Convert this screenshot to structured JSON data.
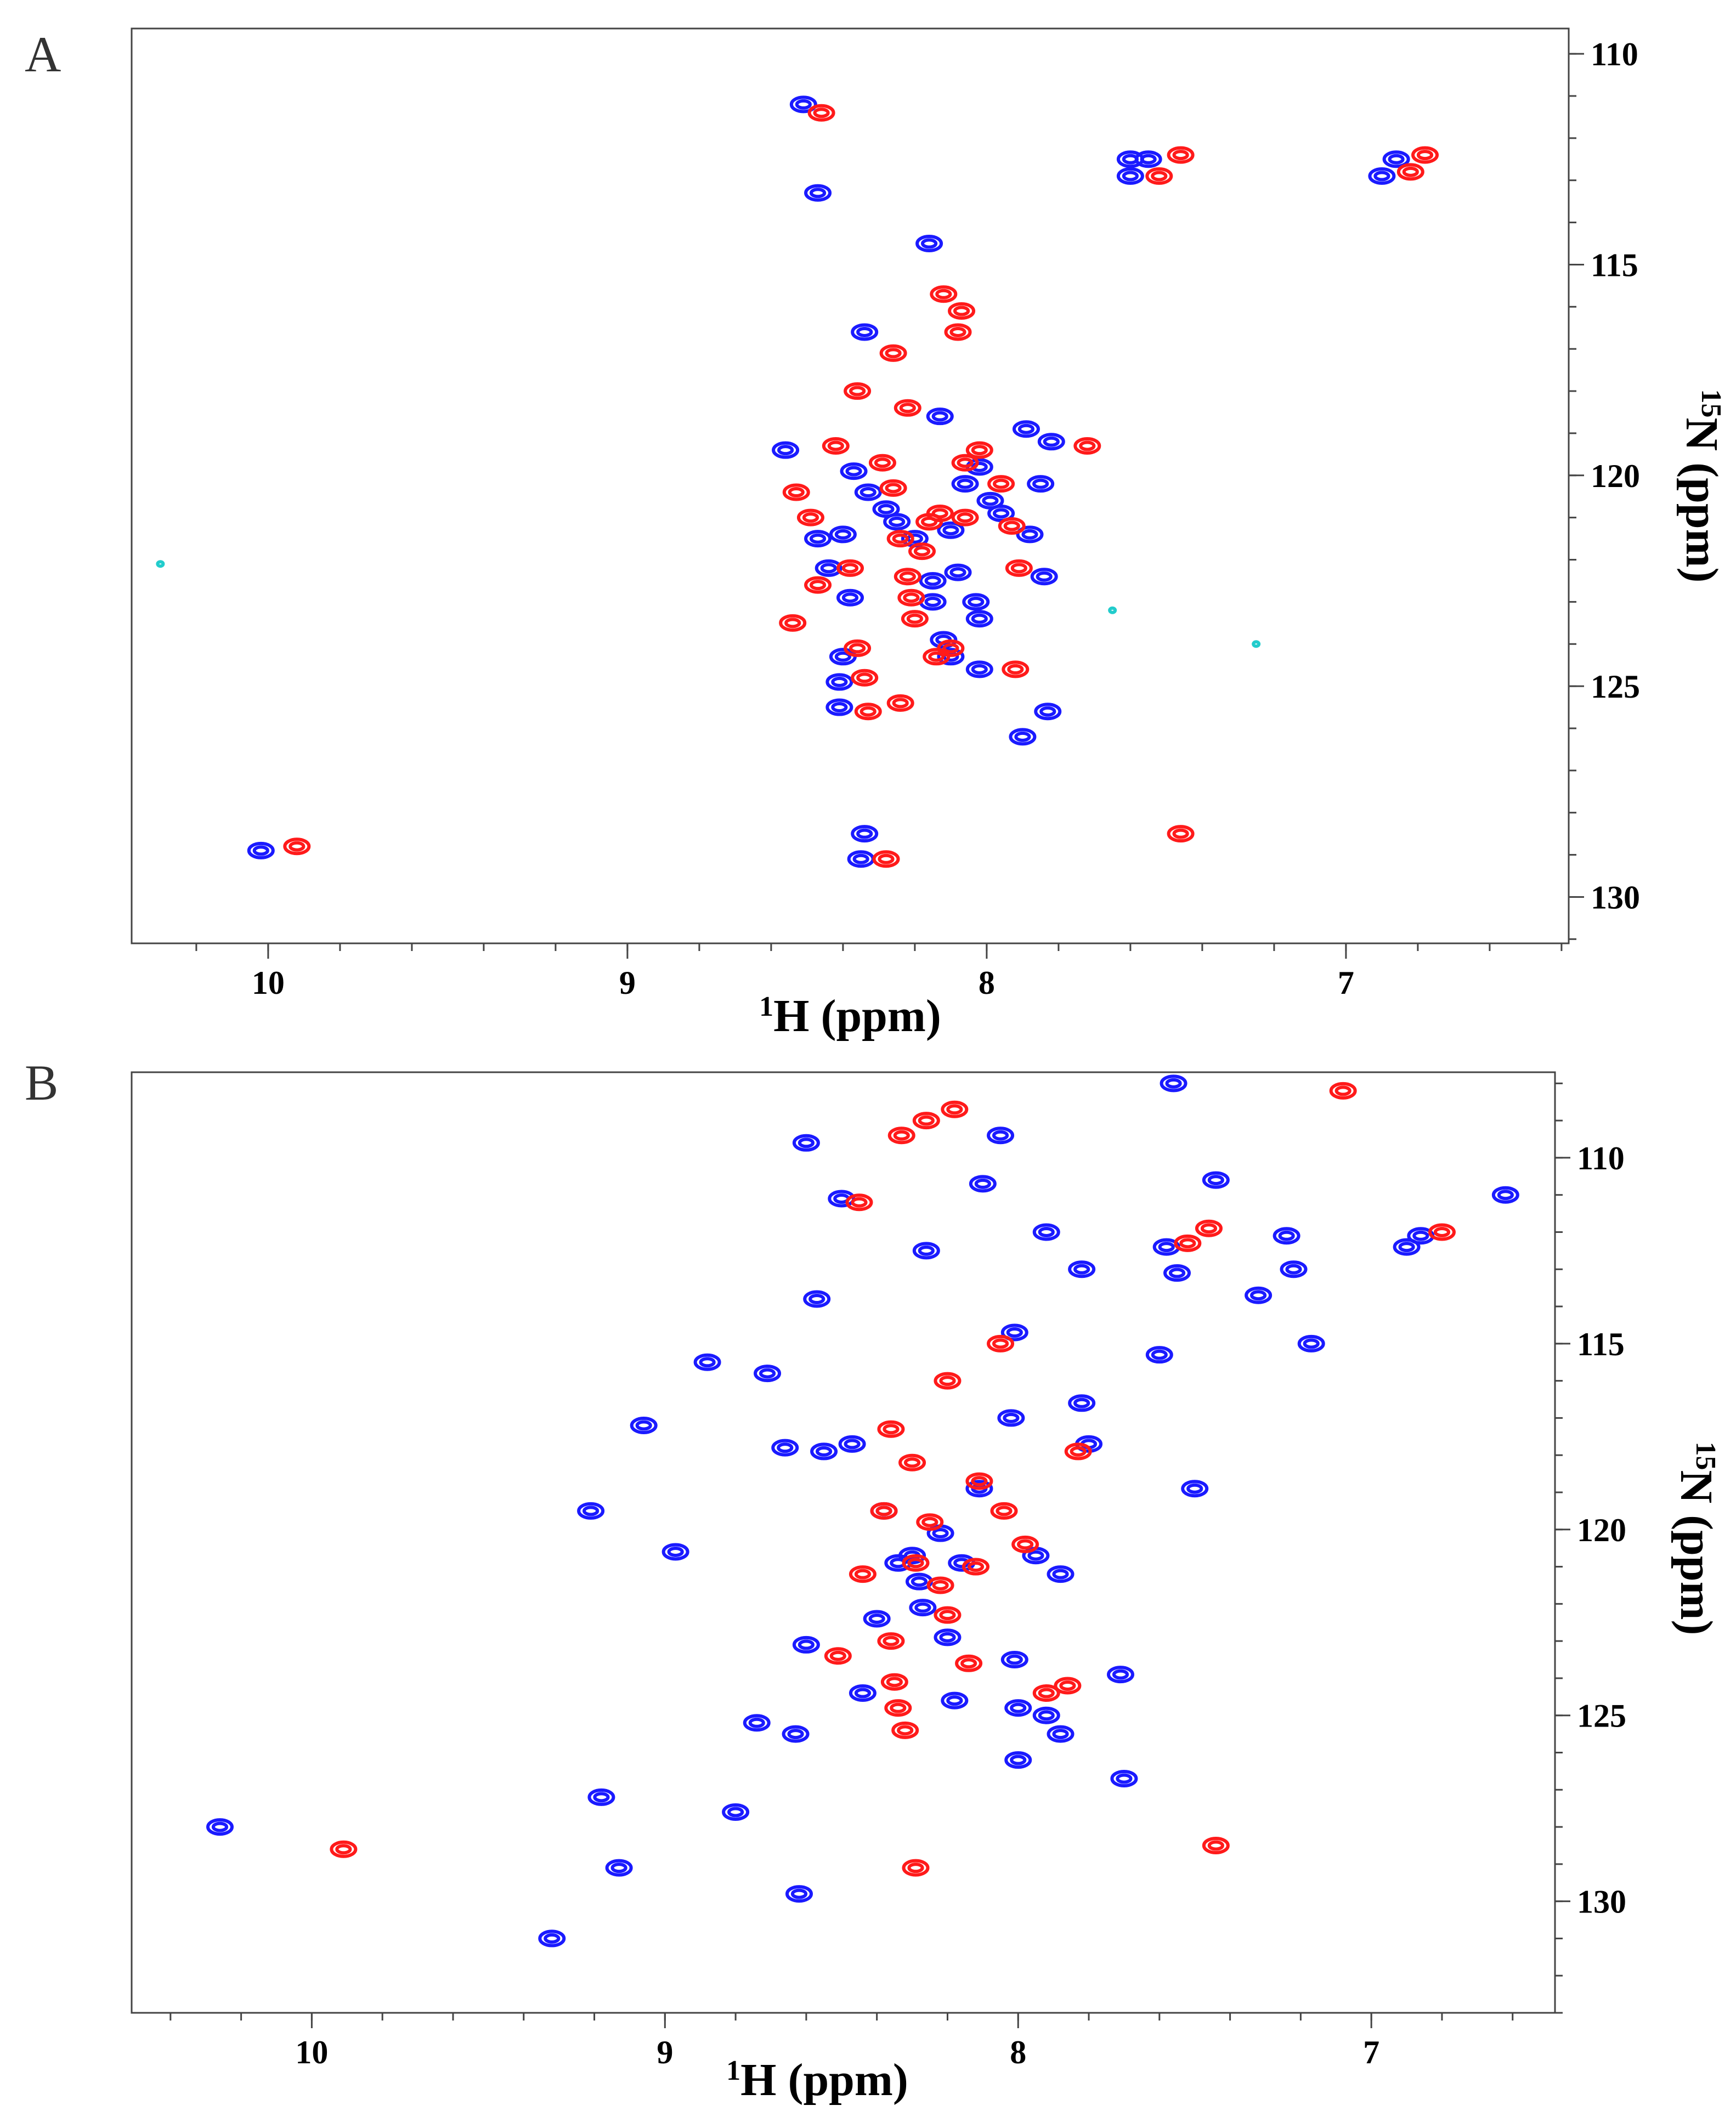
{
  "chart_data": [
    {
      "type": "scatter",
      "panel_label": "A",
      "xlabel_sup": "1",
      "xlabel_rest": "H (ppm)",
      "ylabel_sup": "15",
      "ylabel_rest": "N (ppm)",
      "xlim": [
        10.38,
        6.38
      ],
      "ylim": [
        109.4,
        131.1
      ],
      "xticks": [
        10,
        9,
        8,
        7
      ],
      "yticks": [
        110,
        115,
        120,
        125,
        130
      ],
      "colors": {
        "blue": "#1a1aff",
        "red": "#ff1a1a",
        "cyan": "#22cccc"
      },
      "series": [
        {
          "name": "blue",
          "points": [
            [
              10.02,
              128.9
            ],
            [
              8.56,
              119.4
            ],
            [
              8.47,
              121.5
            ],
            [
              8.44,
              122.2
            ],
            [
              8.4,
              121.4
            ],
            [
              8.38,
              122.9
            ],
            [
              8.4,
              124.3
            ],
            [
              8.41,
              124.9
            ],
            [
              8.41,
              125.5
            ],
            [
              8.37,
              119.9
            ],
            [
              8.34,
              116.6
            ],
            [
              8.33,
              120.4
            ],
            [
              8.28,
              120.8
            ],
            [
              8.25,
              121.1
            ],
            [
              8.2,
              121.5
            ],
            [
              8.15,
              122.5
            ],
            [
              8.1,
              121.3
            ],
            [
              8.08,
              122.3
            ],
            [
              8.06,
              120.2
            ],
            [
              8.02,
              119.8
            ],
            [
              7.99,
              120.6
            ],
            [
              7.96,
              120.9
            ],
            [
              7.88,
              121.4
            ],
            [
              7.85,
              120.2
            ],
            [
              7.84,
              122.4
            ],
            [
              7.83,
              125.6
            ],
            [
              7.89,
              118.9
            ],
            [
              7.82,
              119.2
            ],
            [
              7.6,
              112.5
            ],
            [
              7.6,
              112.9
            ],
            [
              7.55,
              112.5
            ],
            [
              6.9,
              112.9
            ],
            [
              6.86,
              112.5
            ],
            [
              8.15,
              123.0
            ],
            [
              8.12,
              123.9
            ],
            [
              8.1,
              124.3
            ],
            [
              8.03,
              123.0
            ],
            [
              8.02,
              124.6
            ],
            [
              8.02,
              123.4
            ],
            [
              7.9,
              126.2
            ],
            [
              8.34,
              128.5
            ],
            [
              8.35,
              129.1
            ],
            [
              8.47,
              113.3
            ],
            [
              8.16,
              114.5
            ],
            [
              8.51,
              111.2
            ],
            [
              8.13,
              118.6
            ]
          ]
        },
        {
          "name": "red",
          "points": [
            [
              9.92,
              128.8
            ],
            [
              8.46,
              111.4
            ],
            [
              8.54,
              123.5
            ],
            [
              8.53,
              120.4
            ],
            [
              8.49,
              121.0
            ],
            [
              8.47,
              122.6
            ],
            [
              8.42,
              119.3
            ],
            [
              8.36,
              118.0
            ],
            [
              8.38,
              122.2
            ],
            [
              8.36,
              124.1
            ],
            [
              8.34,
              124.8
            ],
            [
              8.33,
              125.6
            ],
            [
              8.29,
              119.7
            ],
            [
              8.26,
              120.3
            ],
            [
              8.24,
              121.5
            ],
            [
              8.22,
              122.4
            ],
            [
              8.21,
              122.9
            ],
            [
              8.2,
              123.4
            ],
            [
              8.18,
              121.8
            ],
            [
              8.16,
              121.1
            ],
            [
              8.13,
              120.9
            ],
            [
              8.12,
              115.7
            ],
            [
              8.07,
              116.1
            ],
            [
              8.08,
              116.6
            ],
            [
              8.06,
              119.7
            ],
            [
              8.02,
              119.4
            ],
            [
              7.96,
              120.2
            ],
            [
              7.93,
              121.2
            ],
            [
              7.91,
              122.2
            ],
            [
              7.92,
              124.6
            ],
            [
              8.26,
              117.1
            ],
            [
              8.22,
              118.4
            ],
            [
              8.14,
              124.3
            ],
            [
              8.1,
              124.1
            ],
            [
              8.24,
              125.4
            ],
            [
              7.52,
              112.9
            ],
            [
              7.46,
              112.4
            ],
            [
              6.82,
              112.8
            ],
            [
              6.78,
              112.4
            ],
            [
              7.46,
              128.5
            ],
            [
              8.28,
              129.1
            ],
            [
              7.72,
              119.3
            ],
            [
              8.06,
              121.0
            ]
          ]
        },
        {
          "name": "cyan",
          "points": [
            [
              10.3,
              122.1
            ],
            [
              7.65,
              123.2
            ],
            [
              7.25,
              124.0
            ]
          ]
        }
      ]
    },
    {
      "type": "scatter",
      "panel_label": "B",
      "xlabel_sup": "1",
      "xlabel_rest": "H (ppm)",
      "ylabel_sup": "15",
      "ylabel_rest": "N (ppm)",
      "xlim": [
        10.51,
        6.48
      ],
      "ylim": [
        107.7,
        133.0
      ],
      "xticks": [
        10,
        9,
        8,
        7
      ],
      "yticks": [
        110,
        115,
        120,
        125,
        130
      ],
      "colors": {
        "blue": "#1a1aff",
        "red": "#ff1a1a",
        "cyan": "#22cccc"
      },
      "series": [
        {
          "name": "blue",
          "points": [
            [
              10.26,
              128.0
            ],
            [
              9.21,
              119.5
            ],
            [
              9.18,
              127.2
            ],
            [
              9.13,
              129.1
            ],
            [
              9.32,
              131.0
            ],
            [
              9.06,
              117.2
            ],
            [
              8.97,
              120.6
            ],
            [
              8.88,
              115.5
            ],
            [
              8.8,
              127.6
            ],
            [
              8.74,
              125.2
            ],
            [
              8.71,
              115.8
            ],
            [
              8.66,
              117.8
            ],
            [
              8.63,
              125.5
            ],
            [
              8.62,
              129.8
            ],
            [
              8.6,
              109.6
            ],
            [
              8.6,
              123.1
            ],
            [
              8.57,
              113.8
            ],
            [
              8.55,
              117.9
            ],
            [
              8.5,
              111.1
            ],
            [
              8.47,
              117.7
            ],
            [
              8.44,
              124.4
            ],
            [
              8.4,
              122.4
            ],
            [
              8.38,
              119.5
            ],
            [
              8.34,
              120.9
            ],
            [
              8.3,
              120.7
            ],
            [
              8.28,
              121.4
            ],
            [
              8.26,
              112.5
            ],
            [
              8.27,
              122.1
            ],
            [
              8.22,
              120.1
            ],
            [
              8.2,
              122.9
            ],
            [
              8.18,
              124.6
            ],
            [
              8.16,
              120.9
            ],
            [
              8.11,
              118.9
            ],
            [
              8.1,
              110.7
            ],
            [
              8.05,
              109.4
            ],
            [
              8.01,
              114.7
            ],
            [
              8.02,
              117.0
            ],
            [
              8.01,
              123.5
            ],
            [
              8.0,
              124.8
            ],
            [
              8.0,
              126.2
            ],
            [
              7.95,
              120.7
            ],
            [
              7.92,
              112.0
            ],
            [
              7.92,
              125.0
            ],
            [
              7.88,
              121.2
            ],
            [
              7.88,
              125.5
            ],
            [
              7.82,
              113.0
            ],
            [
              7.82,
              116.6
            ],
            [
              7.8,
              117.7
            ],
            [
              7.71,
              123.9
            ],
            [
              7.7,
              126.7
            ],
            [
              7.6,
              115.3
            ],
            [
              7.58,
              112.4
            ],
            [
              7.55,
              113.1
            ],
            [
              7.5,
              118.9
            ],
            [
              7.56,
              108.0
            ],
            [
              7.44,
              110.6
            ],
            [
              7.32,
              113.7
            ],
            [
              7.24,
              112.1
            ],
            [
              7.22,
              113.0
            ],
            [
              7.17,
              115.0
            ],
            [
              6.9,
              112.4
            ],
            [
              6.86,
              112.1
            ],
            [
              6.62,
              111.0
            ]
          ]
        },
        {
          "name": "red",
          "points": [
            [
              9.91,
              128.6
            ],
            [
              8.51,
              123.4
            ],
            [
              8.44,
              121.2
            ],
            [
              8.38,
              119.5
            ],
            [
              8.36,
              123.0
            ],
            [
              8.35,
              124.1
            ],
            [
              8.34,
              124.8
            ],
            [
              8.32,
              125.4
            ],
            [
              8.29,
              120.9
            ],
            [
              8.25,
              119.8
            ],
            [
              8.22,
              121.5
            ],
            [
              8.2,
              122.3
            ],
            [
              8.14,
              123.6
            ],
            [
              8.12,
              121.0
            ],
            [
              8.11,
              118.7
            ],
            [
              8.05,
              115.0
            ],
            [
              8.04,
              119.5
            ],
            [
              7.98,
              120.4
            ],
            [
              7.92,
              124.4
            ],
            [
              7.86,
              124.2
            ],
            [
              7.83,
              117.9
            ],
            [
              8.36,
              117.3
            ],
            [
              8.3,
              118.2
            ],
            [
              8.2,
              116.0
            ],
            [
              8.18,
              108.7
            ],
            [
              8.26,
              109.0
            ],
            [
              8.33,
              109.4
            ],
            [
              8.45,
              111.2
            ],
            [
              7.44,
              128.5
            ],
            [
              7.52,
              112.3
            ],
            [
              7.46,
              111.9
            ],
            [
              7.08,
              108.2
            ],
            [
              6.8,
              112.0
            ],
            [
              8.29,
              129.1
            ]
          ]
        },
        {
          "name": "cyan",
          "points": []
        }
      ]
    }
  ]
}
